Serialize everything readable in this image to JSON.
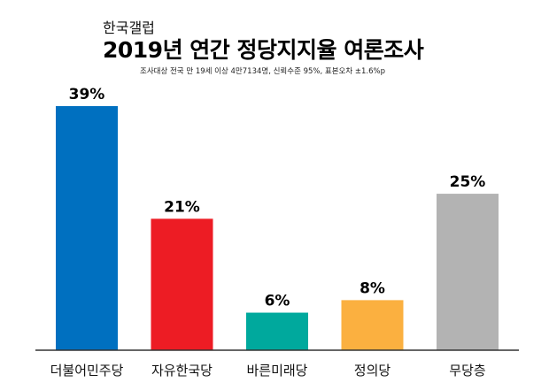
{
  "chart_data": {
    "type": "bar",
    "source": "한국갤럽",
    "title": "2019년 연간 정당지지율 여론조사",
    "subtitle": "조사대상 전국 만 19세 이상 4만7134명, 신뢰수준 95%, 표본오차 ±1.6%p",
    "categories": [
      "더불어민주당",
      "자유한국당",
      "바른미래당",
      "정의당",
      "무당층"
    ],
    "values": [
      39,
      21,
      6,
      8,
      25
    ],
    "data_labels": [
      "39%",
      "21%",
      "6%",
      "8%",
      "25%"
    ],
    "colors": [
      "#0070c0",
      "#ed1c24",
      "#00a99d",
      "#fbb040",
      "#b3b3b3"
    ],
    "unit": "%",
    "ylim": [
      0,
      39
    ],
    "grid": false,
    "legend": "none"
  }
}
